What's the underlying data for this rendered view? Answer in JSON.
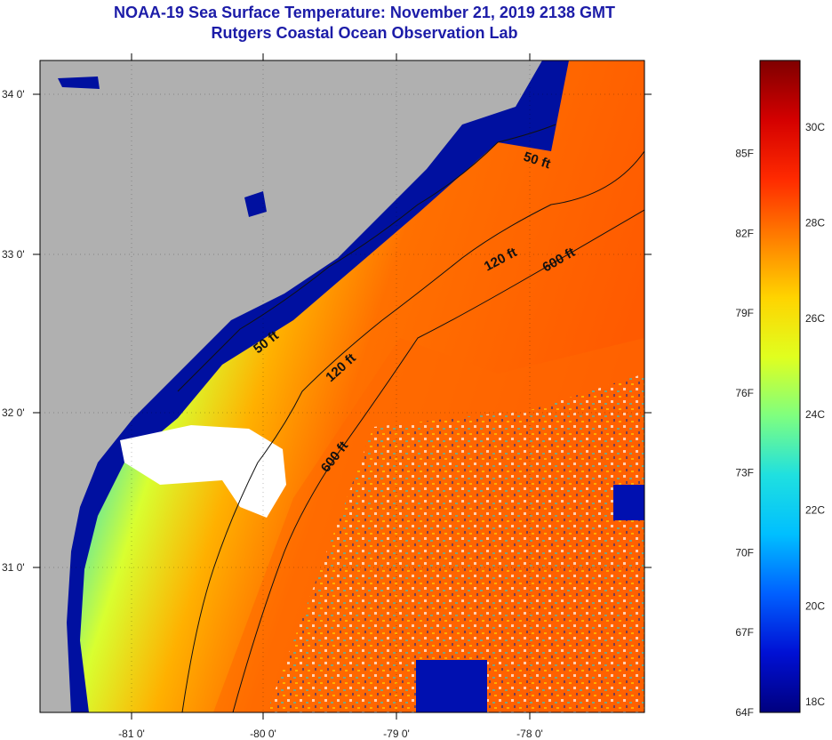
{
  "title": "NOAA-19 Sea Surface Temperature:  November 21, 2019 2138 GMT",
  "subtitle": "Rutgers Coastal Ocean Observation Lab",
  "map": {
    "lon_ticks": [
      "-81 0'",
      "-80 0'",
      "-79 0'",
      "-78 0'"
    ],
    "lat_ticks": [
      "34 0'",
      "33 0'",
      "32 0'",
      "31 0'"
    ],
    "contours": [
      "50 ft",
      "50 ft",
      "120 ft",
      "120 ft",
      "600 ft",
      "600 ft"
    ]
  },
  "colorbar": {
    "fahrenheit": [
      "85F",
      "82F",
      "79F",
      "76F",
      "73F",
      "70F",
      "67F",
      "64F"
    ],
    "celsius": [
      "30C",
      "28C",
      "26C",
      "24C",
      "22C",
      "20C",
      "18C"
    ],
    "colors": [
      "#7f0000",
      "#d40000",
      "#ff2a00",
      "#ff7f00",
      "#ffd400",
      "#e0ff1f",
      "#7fff7f",
      "#1fe0e0",
      "#00bfff",
      "#0060ff",
      "#0010d4",
      "#00007f"
    ]
  }
}
